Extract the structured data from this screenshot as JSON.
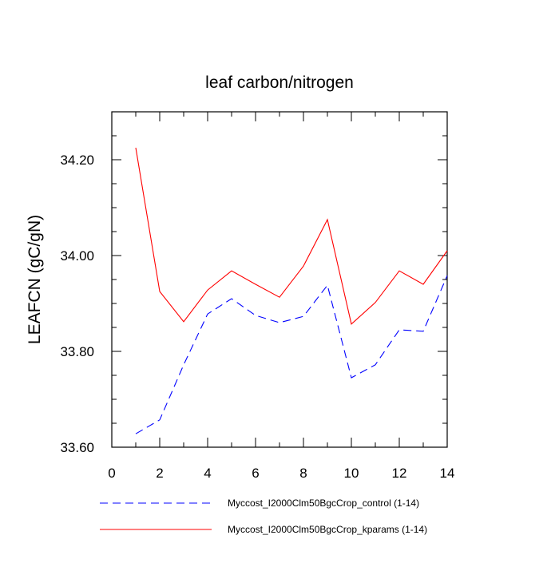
{
  "chart_data": {
    "type": "line",
    "title": "leaf carbon/nitrogen",
    "xlabel": "",
    "ylabel": "LEAFCN  (gC/gN)",
    "xlim": [
      0,
      14
    ],
    "ylim": [
      33.6,
      34.3
    ],
    "x_ticks": [
      0,
      2,
      4,
      6,
      8,
      10,
      12,
      14
    ],
    "x_tick_labels": [
      "0",
      "2",
      "4",
      "6",
      "8",
      "10",
      "12",
      "14"
    ],
    "y_ticks": [
      33.6,
      33.8,
      34.0,
      34.2
    ],
    "y_tick_labels": [
      "33.60",
      "33.80",
      "34.00",
      "34.20"
    ],
    "grid": false,
    "legend_position": "bottom",
    "x": [
      1,
      2,
      3,
      4,
      5,
      6,
      7,
      8,
      9,
      10,
      11,
      12,
      13,
      14
    ],
    "series": [
      {
        "name": "Myccost_I2000Clm50BgcCrop_control (1-14)",
        "color": "#0000ff",
        "style": "dashed",
        "values": [
          33.628,
          33.657,
          33.772,
          33.878,
          33.91,
          33.875,
          33.86,
          33.873,
          33.938,
          33.745,
          33.772,
          33.845,
          33.842,
          33.958
        ]
      },
      {
        "name": "Myccost_I2000Clm50BgcCrop_kparams (1-14)",
        "color": "#ff0000",
        "style": "solid",
        "values": [
          34.225,
          33.925,
          33.862,
          33.928,
          33.968,
          33.94,
          33.913,
          33.978,
          34.075,
          33.857,
          33.902,
          33.968,
          33.94,
          34.01
        ]
      }
    ]
  }
}
